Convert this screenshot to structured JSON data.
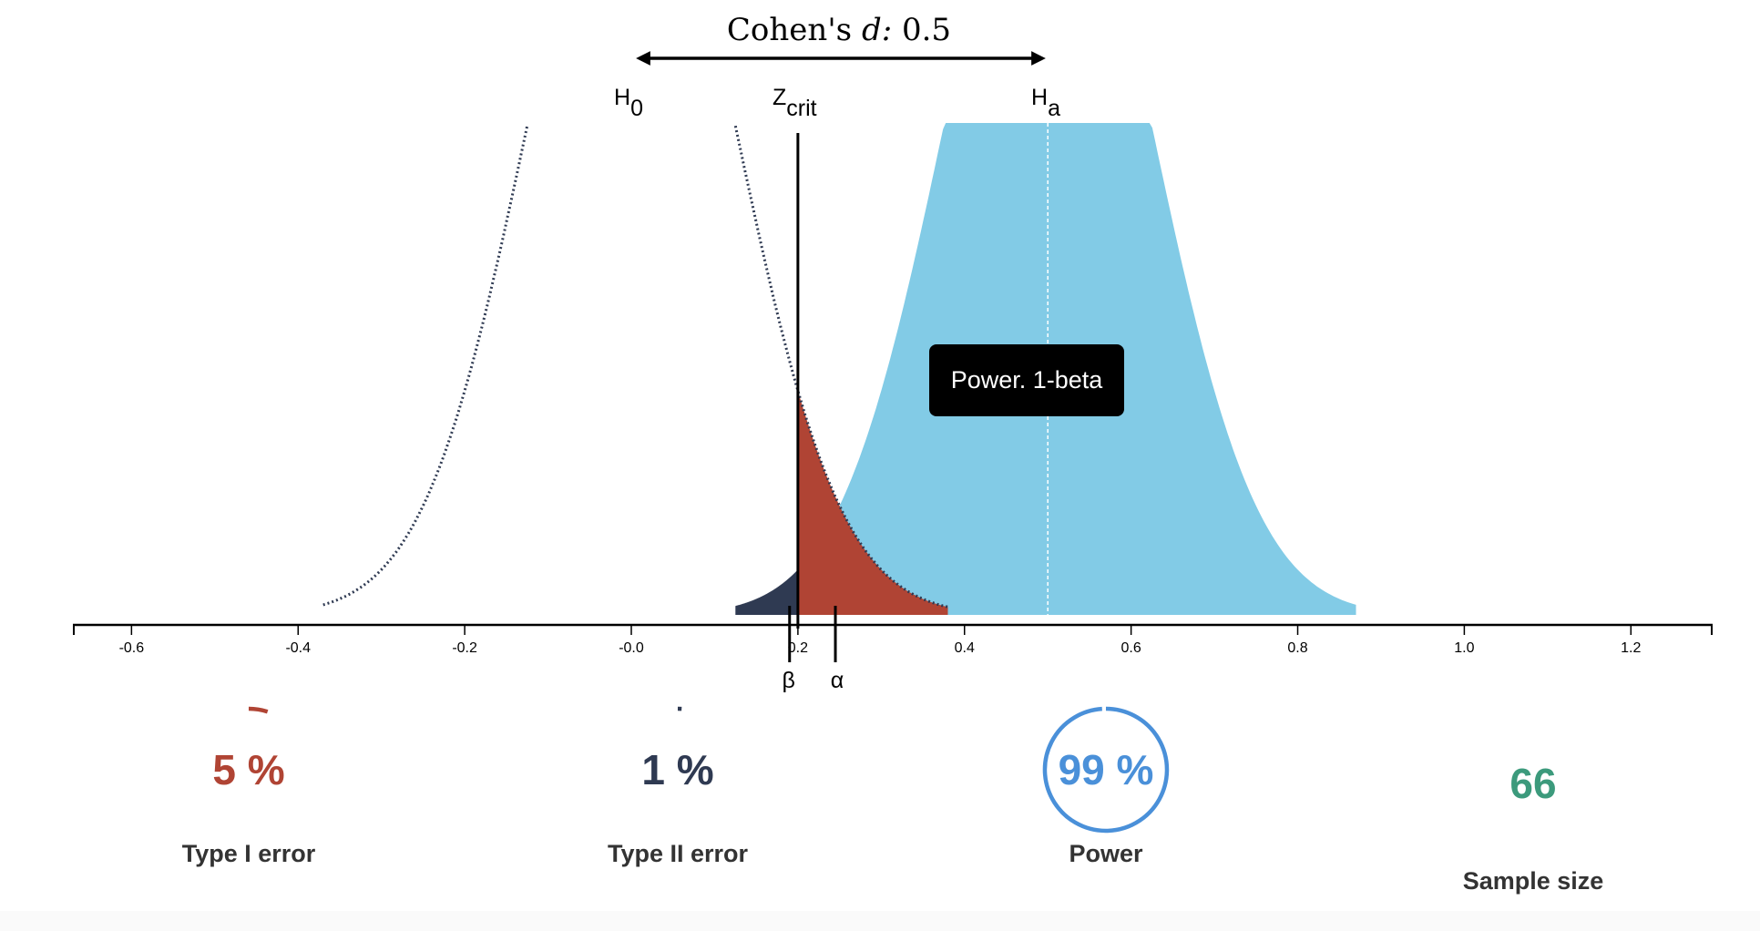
{
  "chart_data": {
    "type": "area",
    "title_prefix": "Cohen's ",
    "title_var": "d:",
    "title_value": " 0.5",
    "effect_size": 0.5,
    "h0_label": "H",
    "h0_sub": "0",
    "ha_label": "H",
    "ha_sub": "a",
    "zcrit_label": "Z",
    "zcrit_sub": "crit",
    "beta_label": "β",
    "alpha_label": "α",
    "h0_mean": 0,
    "ha_mean": 0.5,
    "sd": 0.125,
    "zcrit": 0.2,
    "beta_marker": 0.19,
    "alpha_marker": 0.245,
    "xlim": [
      -0.67,
      1.3
    ],
    "ticks": [
      -0.6,
      -0.4,
      -0.2,
      0.0,
      0.2,
      0.4,
      0.6,
      0.8,
      1.0,
      1.2
    ],
    "tick_labels": [
      "-0.6",
      "-0.4",
      "-0.2",
      "-0.0",
      "0.2",
      "0.4",
      "0.6",
      "0.8",
      "1.0",
      "1.2"
    ],
    "grid": false,
    "series": [
      {
        "role": "null distribution (dotted)",
        "color": "#2f3a52"
      },
      {
        "role": "power region",
        "color": "#82cbe6"
      },
      {
        "role": "type II region",
        "color": "#2f3a52"
      },
      {
        "role": "type I region",
        "color": "#b04434"
      }
    ],
    "tooltip": "Power. 1-beta"
  },
  "stats": [
    {
      "value": "5 %",
      "fraction": 0.05,
      "label": "Type I error",
      "color": "#b04434"
    },
    {
      "value": "1 %",
      "fraction": 0.01,
      "label": "Type II error",
      "color": "#2f3a52"
    },
    {
      "value": "99 %",
      "fraction": 0.99,
      "label": "Power",
      "color": "#4a90d9"
    },
    {
      "value": "66",
      "label": "Sample size",
      "color": "#3c9a7c"
    }
  ]
}
